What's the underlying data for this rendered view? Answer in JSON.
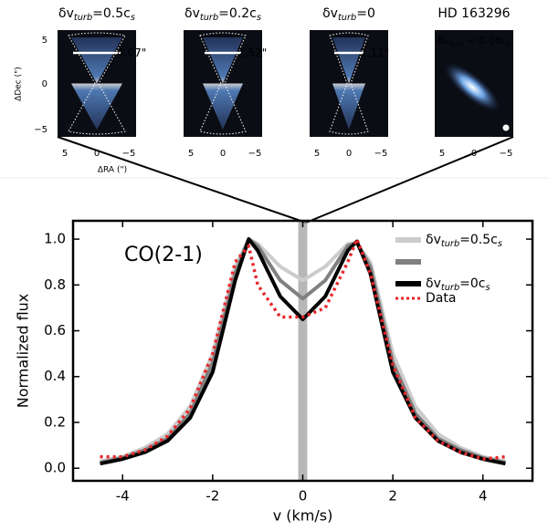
{
  "panels": [
    {
      "title": [
        "δv",
        "turb",
        "=0.5c",
        "s"
      ],
      "label": [
        "4.07\""
      ]
    },
    {
      "title": [
        "δv",
        "turb",
        "=0.2c",
        "s"
      ],
      "label": [
        "2.52\""
      ]
    },
    {
      "title": [
        "δv",
        "turb",
        "=0"
      ],
      "label": [
        "2.11\""
      ]
    },
    {
      "title": [
        "HD 163296"
      ],
      "label": [
        "δv",
        "turb",
        " < 0.06c",
        "s"
      ]
    }
  ],
  "panel_axes": {
    "ylabel": "ΔDec (\")",
    "xlabel": "ΔRA (\")",
    "xticks": [
      "5",
      "0",
      "−5"
    ],
    "yticks": [
      "5",
      "0",
      "−5"
    ]
  },
  "chart_data": {
    "type": "line",
    "annotation": "CO(2-1)",
    "xlabel": "v (km/s)",
    "ylabel": "Normalized flux",
    "x": [
      -4.5,
      -4,
      -3.5,
      -3,
      -2.5,
      -2,
      -1.5,
      -1.2,
      -1,
      -0.5,
      0,
      0.5,
      1,
      1.2,
      1.5,
      2,
      2.5,
      3,
      3.5,
      4,
      4.5
    ],
    "xlim": [
      -5.1,
      5.1
    ],
    "xticks": [
      -4,
      -2,
      0,
      2,
      4
    ],
    "ylim": [
      -0.055,
      1.08
    ],
    "yticks": [
      {
        "value": 0,
        "label": "0.0"
      },
      {
        "value": 0.2,
        "label": "0.2"
      },
      {
        "value": 0.4,
        "label": "0.4"
      },
      {
        "value": 0.6,
        "label": "0.6"
      },
      {
        "value": 0.8,
        "label": "0.8"
      },
      {
        "value": 1,
        "label": "1.0"
      }
    ],
    "shaded_band": [
      -0.1,
      0.1
    ],
    "series": [
      {
        "name": [
          "δv",
          "turb",
          "=0.5c",
          "s"
        ],
        "color": "#cccccc",
        "values": [
          0.03,
          0.05,
          0.09,
          0.15,
          0.27,
          0.5,
          0.88,
          1.0,
          0.98,
          0.88,
          0.82,
          0.88,
          0.98,
          0.98,
          0.9,
          0.5,
          0.27,
          0.15,
          0.09,
          0.05,
          0.03
        ]
      },
      {
        "color": "#808080",
        "values": [
          0.025,
          0.045,
          0.08,
          0.13,
          0.24,
          0.46,
          0.85,
          1.0,
          0.97,
          0.82,
          0.74,
          0.82,
          0.97,
          0.985,
          0.88,
          0.46,
          0.24,
          0.13,
          0.08,
          0.045,
          0.025
        ]
      },
      {
        "name": [
          "δv",
          "turb",
          "=0c",
          "s"
        ],
        "color": "#000000",
        "values": [
          0.02,
          0.04,
          0.07,
          0.12,
          0.22,
          0.42,
          0.82,
          1.0,
          0.95,
          0.75,
          0.65,
          0.75,
          0.95,
          0.99,
          0.85,
          0.42,
          0.22,
          0.12,
          0.07,
          0.04,
          0.02
        ]
      },
      {
        "name": [
          "Data"
        ],
        "color": "#e8262a",
        "linestyle": "dotted",
        "values": [
          0.05,
          0.05,
          0.08,
          0.14,
          0.26,
          0.5,
          0.9,
          0.97,
          0.8,
          0.66,
          0.66,
          0.7,
          0.9,
          1.0,
          0.85,
          0.45,
          0.22,
          0.12,
          0.07,
          0.04,
          0.05
        ]
      }
    ]
  }
}
